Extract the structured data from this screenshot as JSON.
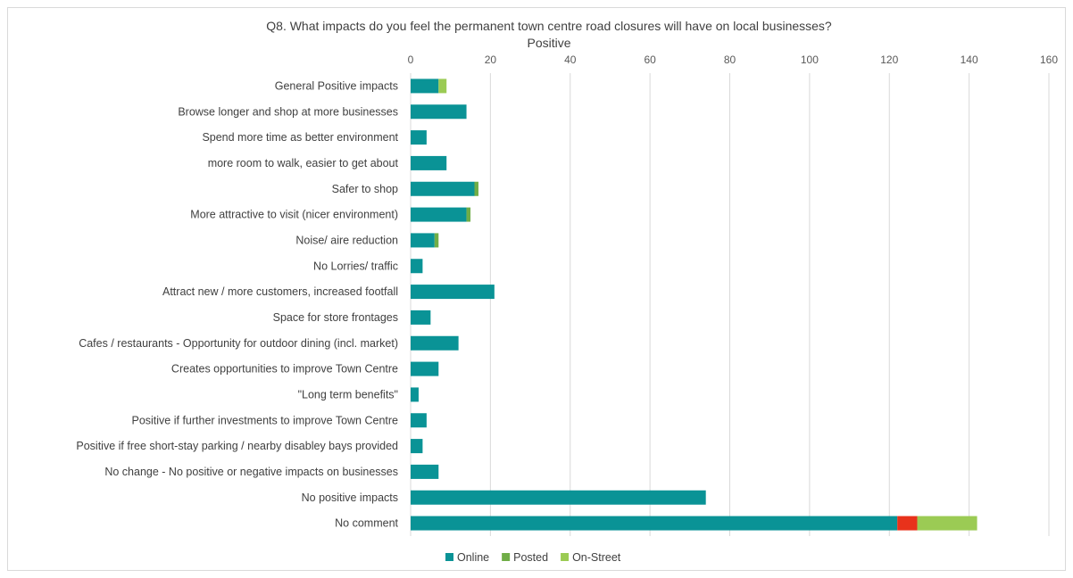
{
  "chart_data": {
    "type": "bar",
    "orientation": "horizontal",
    "stacked": true,
    "title": "Q8. What impacts do you feel the permanent town centre road closures will have on local businesses?",
    "subtitle": "Positive",
    "xlim": [
      0,
      160
    ],
    "x_ticks": [
      0,
      20,
      40,
      60,
      80,
      100,
      120,
      140,
      160
    ],
    "grid": true,
    "legend_position": "bottom",
    "categories": [
      "General Positive impacts",
      "Browse longer and shop at more businesses",
      "Spend more time as better environment",
      "more room to walk, easier to get about",
      "Safer to shop",
      "More attractive to visit (nicer environment)",
      "Noise/ aire reduction",
      "No Lorries/ traffic",
      "Attract new / more customers, increased footfall",
      "Space for store frontages",
      "Cafes / restaurants - Opportunity for outdoor dining (incl. market)",
      "Creates opportunities to improve Town Centre",
      "\"Long term benefits\"",
      "Positive if further investments to improve Town Centre",
      "Positive if free short-stay parking / nearby disabley bays provided",
      "No change - No positive or negative impacts on businesses",
      "No positive impacts",
      "No comment"
    ],
    "series": [
      {
        "name": "Online",
        "color": "#0a9396",
        "values": [
          7,
          14,
          4,
          9,
          16,
          14,
          6,
          3,
          21,
          5,
          12,
          7,
          2,
          4,
          3,
          7,
          74,
          122
        ]
      },
      {
        "name": "Posted",
        "color": "#70ad47",
        "values": [
          0,
          0,
          0,
          0,
          1,
          1,
          1,
          0,
          0,
          0,
          0,
          0,
          0,
          0,
          0,
          0,
          0,
          0
        ]
      },
      {
        "name": "On-Street",
        "color": "#9bcb54",
        "values": [
          2,
          0,
          0,
          0,
          0,
          0,
          0,
          0,
          0,
          0,
          0,
          0,
          0,
          0,
          0,
          0,
          0,
          15
        ]
      }
    ],
    "extra_segments": [
      {
        "category": "No comment",
        "color": "#e8321b",
        "start": 122,
        "value": 5
      }
    ]
  }
}
